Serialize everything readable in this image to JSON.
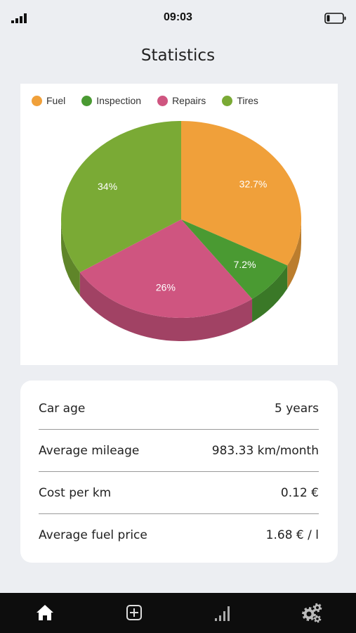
{
  "status_bar": {
    "time": "09:03"
  },
  "page_title": "Statistics",
  "chart_data": {
    "type": "pie",
    "categories": [
      "Fuel",
      "Inspection",
      "Repairs",
      "Tires"
    ],
    "values": [
      32.7,
      7.2,
      26,
      34
    ],
    "labels": [
      "32.7%",
      "7.2%",
      "26%",
      "34%"
    ],
    "colors": [
      "#f0a03a",
      "#4a9a32",
      "#cf5580",
      "#7aaa35"
    ],
    "legend_position": "top-left",
    "style": "3d"
  },
  "stats": [
    {
      "label": "Car age",
      "value": "5 years"
    },
    {
      "label": "Average mileage",
      "value": "983.33 km/month"
    },
    {
      "label": "Cost per km",
      "value": "0.12 €"
    },
    {
      "label": "Average fuel price",
      "value": "1.68 € / l"
    }
  ],
  "nav": {
    "items": [
      {
        "icon": "home-icon"
      },
      {
        "icon": "add-icon"
      },
      {
        "icon": "statistics-icon"
      },
      {
        "icon": "settings-icon"
      }
    ]
  }
}
